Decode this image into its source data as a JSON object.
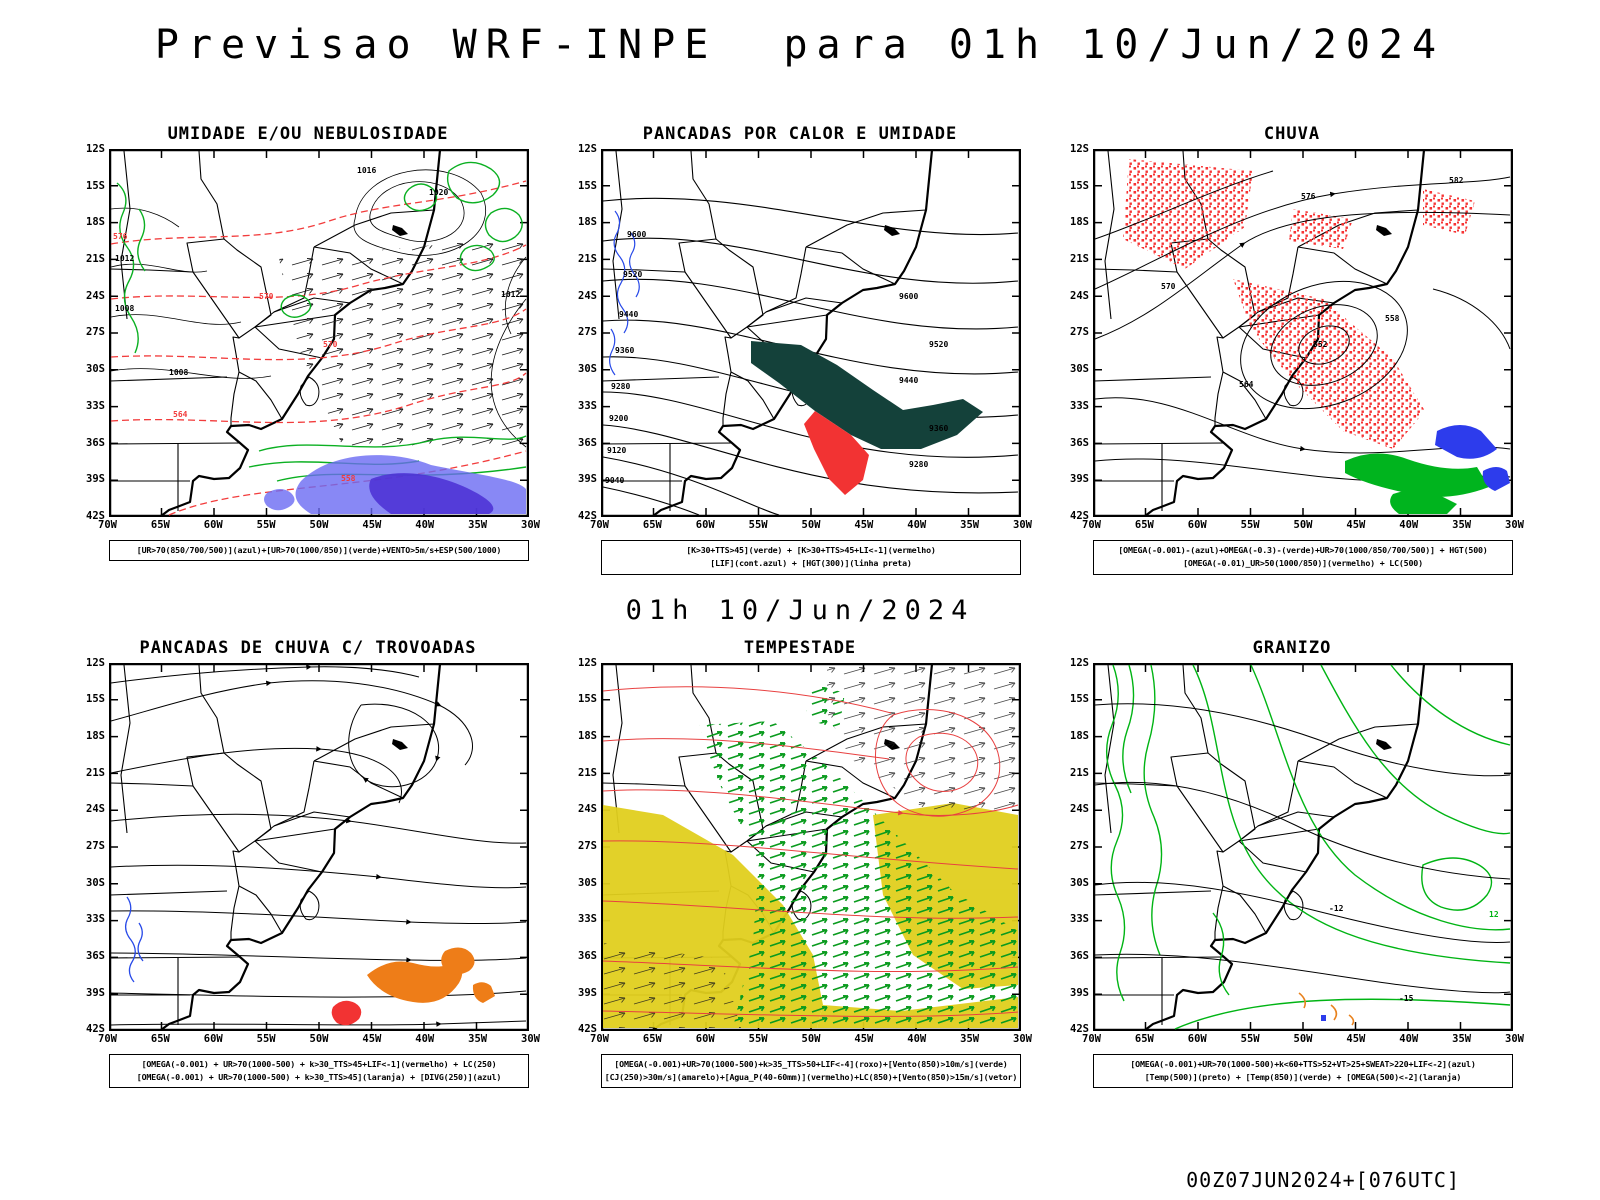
{
  "page": {
    "title": "Previsao WRF-INPE  para 01h 10/Jun/2024",
    "center_datetime": "01h 10/Jun/2024",
    "footer_run_info": "00Z07JUN2024+[076UTC]"
  },
  "axes": {
    "lat_ticks": [
      "12S",
      "15S",
      "18S",
      "21S",
      "24S",
      "27S",
      "30S",
      "33S",
      "36S",
      "39S",
      "42S"
    ],
    "lon_ticks": [
      "70W",
      "65W",
      "60W",
      "55W",
      "50W",
      "45W",
      "40W",
      "35W",
      "30W"
    ]
  },
  "colors": {
    "contour_black": "#000000",
    "thickness_red": "#f23c3c",
    "humidity_green": "#0bb022",
    "moisture_blue": "#6a6af2",
    "deep_moisture_purple": "#4b2fd4",
    "instability_dark_green": "#14413a",
    "alert_red": "#f23333",
    "rain_speckle_red": "#f63333",
    "rain_green": "#00b41e",
    "rain_blue": "#2d3cec",
    "storm_yellow": "#e0cf1d",
    "wind_vector_green": "#0a9b1e",
    "hail_green": "#00b414",
    "shower_orange": "#ee7d18",
    "lif_blue": "#2749e8"
  },
  "panels": [
    {
      "id": "umidade-nebulosidade",
      "title": "UMIDADE E/OU NEBULOSIDADE",
      "caption_lines": [
        "[UR>70(850/700/500)](azul)+[UR>70(1000/850)](verde)+VENTO>5m/s+ESP(500/1000)",
        ""
      ],
      "map_labels": [
        "1020",
        "1016",
        "1012",
        "1008",
        "1008",
        "1012",
        "576",
        "570",
        "570",
        "564",
        "558"
      ]
    },
    {
      "id": "pancadas-calor-umidade",
      "title": "PANCADAS POR CALOR E UMIDADE",
      "caption_lines": [
        "[K>30+TTS>45](verde) + [K>30+TTS>45+LI<-1](vermelho)",
        "[LIF](cont.azul) + [HGT(300)](linha preta)"
      ],
      "map_labels": [
        "9600",
        "9520",
        "9440",
        "9360",
        "9280",
        "9200",
        "9120",
        "9040",
        "9600",
        "9520",
        "9440",
        "9360",
        "9280"
      ]
    },
    {
      "id": "chuva",
      "title": "CHUVA",
      "caption_lines": [
        "[OMEGA(-0.001)-(azul)+OMEGA(-0.3)-(verde)+UR>70(1000/850/700/500)] + HGT(500)",
        "[OMEGA(-0.01)_UR>50(1000/850)](vermelho) + LC(500)"
      ],
      "map_labels": [
        "552",
        "558",
        "564",
        "570",
        "576",
        "582"
      ]
    },
    {
      "id": "pancadas-trovoadas",
      "title": "PANCADAS DE CHUVA C/ TROVOADAS",
      "caption_lines": [
        "[OMEGA(-0.001) + UR>70(1000-500) + k>30_TTS>45+LIF<-1](vermelho) + LC(250)",
        "[OMEGA(-0.001) + UR>70(1000-500) + k>30_TTS>45](laranja) + [DIVG(250)](azul)"
      ],
      "map_labels": []
    },
    {
      "id": "tempestade",
      "title": "TEMPESTADE",
      "caption_lines": [
        "[OMEGA(-0.001)+UR>70(1000-500)+k>35_TTS>50+LIF<-4](roxo)+[Vento(850)>10m/s](verde)",
        "[CJ(250)>30m/s](amarelo)+[Agua_P(40-60mm)](vermelho)+LC(850)+[Vento(850)>15m/s](vetor)"
      ],
      "map_labels": []
    },
    {
      "id": "granizo",
      "title": "GRANIZO",
      "caption_lines": [
        "[OMEGA(-0.001)+UR>70(1000-500)+k<60+TTS>52+VT>25+SWEAT>220+LIF<-2](azul)",
        "[Temp(500)](preto) + [Temp(850)](verde) + [OMEGA(500)<-2](laranja)"
      ],
      "map_labels": [
        "12",
        "-12",
        "-15"
      ]
    }
  ]
}
